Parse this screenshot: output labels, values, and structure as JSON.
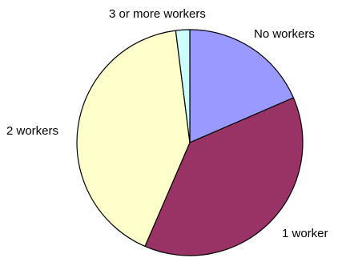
{
  "chart_data": {
    "type": "pie",
    "title": "",
    "slices": [
      {
        "label": "No workers",
        "value": 18.5,
        "color": "#9999ff"
      },
      {
        "label": "1 worker",
        "value": 38,
        "color": "#993366"
      },
      {
        "label": "2 workers",
        "value": 41.5,
        "color": "#ffffcc"
      },
      {
        "label": "3 or more workers",
        "value": 2,
        "color": "#ccffff"
      }
    ],
    "start": "12 o'clock",
    "direction": "clockwise",
    "legend": "none",
    "data_labels": "category name"
  }
}
